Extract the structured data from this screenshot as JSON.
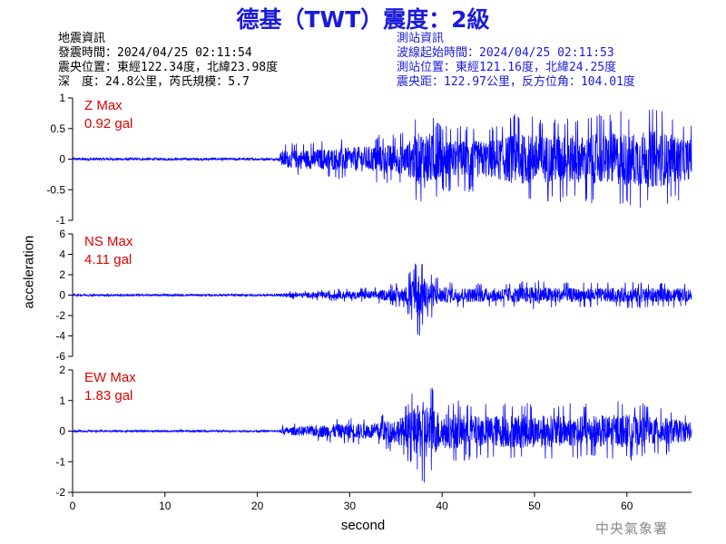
{
  "title": "德基（TWT）震度：2級",
  "quake_info": {
    "heading": "地震資訊",
    "origin_time": "發震時間：2024/04/25 02:11:54",
    "epicenter": "震央位置：東經122.34度，北緯23.98度",
    "depth_mag": "深　度：24.8公里，芮氏規模：5.7"
  },
  "station_info": {
    "heading": "測站資訊",
    "wave_start": "波線起始時間：2024/04/25 02:11:53",
    "station_loc": "測站位置：東經121.16度，北緯24.25度",
    "distance": "震央距：122.97公里，反方位角：104.01度"
  },
  "agency": "中央氣象署",
  "colors": {
    "title": "#1a1adf",
    "trace": "#0000ff",
    "peak_label": "#e00000",
    "station_text": "#1a1adf"
  },
  "chart_data": {
    "type": "line",
    "xlabel": "second",
    "ylabel": "acceleration",
    "xlim": [
      0,
      67
    ],
    "x_ticks": [
      "0",
      "10",
      "20",
      "30",
      "40",
      "50",
      "60"
    ],
    "x_tick_values": [
      0,
      10,
      20,
      30,
      40,
      50,
      60
    ],
    "grid": false,
    "series": [
      {
        "name": "Z Max",
        "peak": "0.92 gal",
        "ylim": [
          -1,
          1
        ],
        "y_tick_values": [
          -1,
          -0.5,
          0,
          0.5,
          1
        ],
        "y_ticks": [
          "-1",
          "-0.5",
          "0",
          "0.5",
          "1"
        ],
        "onset_s": 22.5,
        "envelope": [
          [
            0,
            0.02
          ],
          [
            22.4,
            0.02
          ],
          [
            22.6,
            0.25
          ],
          [
            26,
            0.3
          ],
          [
            30,
            0.35
          ],
          [
            36,
            0.45
          ],
          [
            38,
            0.9
          ],
          [
            40,
            0.55
          ],
          [
            45,
            0.55
          ],
          [
            48,
            0.75
          ],
          [
            55,
            0.7
          ],
          [
            60,
            0.8
          ],
          [
            63,
            0.85
          ],
          [
            66.8,
            0.6
          ]
        ]
      },
      {
        "name": "NS Max",
        "peak": "4.11 gal",
        "ylim": [
          -6,
          6
        ],
        "y_tick_values": [
          -6,
          -4,
          -2,
          0,
          2,
          4,
          6
        ],
        "y_ticks": [
          "-6",
          "-4",
          "-2",
          "0",
          "2",
          "4",
          "6"
        ],
        "onset_s": 22.5,
        "envelope": [
          [
            0,
            0.1
          ],
          [
            22.4,
            0.1
          ],
          [
            22.6,
            0.35
          ],
          [
            28,
            0.6
          ],
          [
            33,
            0.8
          ],
          [
            36,
            1.4
          ],
          [
            37.5,
            4.1
          ],
          [
            38.5,
            2.5
          ],
          [
            40,
            1.4
          ],
          [
            45,
            1.2
          ],
          [
            50,
            1.5
          ],
          [
            55,
            1.2
          ],
          [
            60,
            1.3
          ],
          [
            66.8,
            1.2
          ]
        ]
      },
      {
        "name": "EW Max",
        "peak": "1.83 gal",
        "ylim": [
          -2,
          2
        ],
        "y_tick_values": [
          -2,
          -1,
          0,
          1,
          2
        ],
        "y_ticks": [
          "-2",
          "-1",
          "0",
          "1",
          "2"
        ],
        "onset_s": 22.5,
        "envelope": [
          [
            0,
            0.03
          ],
          [
            22.4,
            0.03
          ],
          [
            22.6,
            0.2
          ],
          [
            28,
            0.4
          ],
          [
            33,
            0.5
          ],
          [
            36,
            0.9
          ],
          [
            38,
            1.8
          ],
          [
            40,
            1.1
          ],
          [
            44,
            0.9
          ],
          [
            48,
            1.0
          ],
          [
            55,
            0.9
          ],
          [
            60,
            1.0
          ],
          [
            64,
            0.8
          ],
          [
            66.8,
            0.6
          ]
        ]
      }
    ]
  }
}
